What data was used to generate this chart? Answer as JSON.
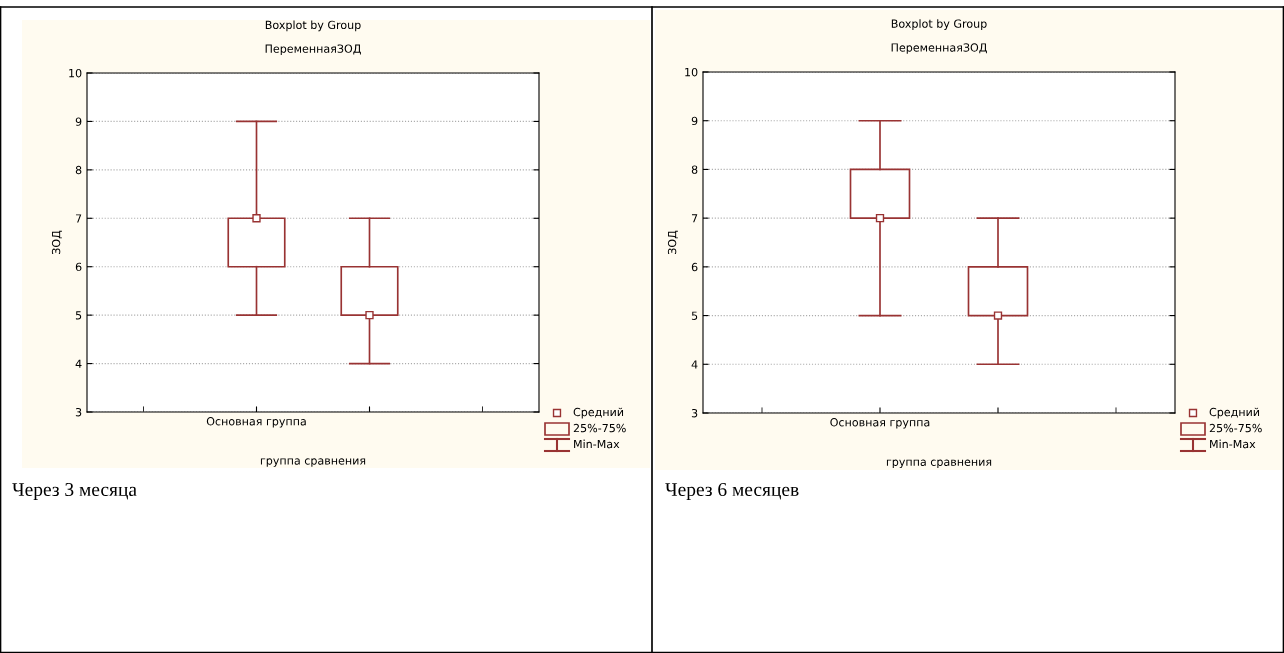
{
  "chart_data": [
    {
      "type": "box",
      "title": "Boxplot by Group",
      "subtitle": "ПеременнаяЗОД",
      "xlabel": "группа сравнения",
      "ylabel": "ЗОД",
      "categories": [
        "Основная группа",
        null
      ],
      "color": "#993333",
      "boxes": [
        {
          "low": 5,
          "q1": 6,
          "q3": 7,
          "high": 9,
          "mean": 7
        },
        {
          "low": 4,
          "q1": 5,
          "q3": 6,
          "high": 7,
          "mean": 5
        }
      ],
      "ylim": [
        3,
        10
      ],
      "yticks": [
        3,
        4,
        5,
        6,
        7,
        8,
        9,
        10
      ],
      "grid": "y",
      "annotations": [
        "Через 3 месяца",
        "Средний",
        "25%-75%",
        "Min-Max"
      ]
    },
    {
      "type": "box",
      "title": "Boxplot by Group",
      "subtitle": "ПеременнаяЗОД",
      "xlabel": "группа сравнения",
      "ylabel": "ЗОД",
      "categories": [
        "Основная группа",
        null
      ],
      "color": "#993333",
      "boxes": [
        {
          "low": 5,
          "q1": 7,
          "q3": 8,
          "high": 9,
          "mean": 7
        },
        {
          "low": 4,
          "q1": 5,
          "q3": 6,
          "high": 7,
          "mean": 5
        }
      ],
      "ylim": [
        3,
        10
      ],
      "yticks": [
        3,
        4,
        5,
        6,
        7,
        8,
        9,
        10
      ],
      "grid": "y",
      "annotations": [
        "Через 6 месяцев",
        "Средний",
        "25%-75%",
        "Min-Max"
      ]
    }
  ]
}
